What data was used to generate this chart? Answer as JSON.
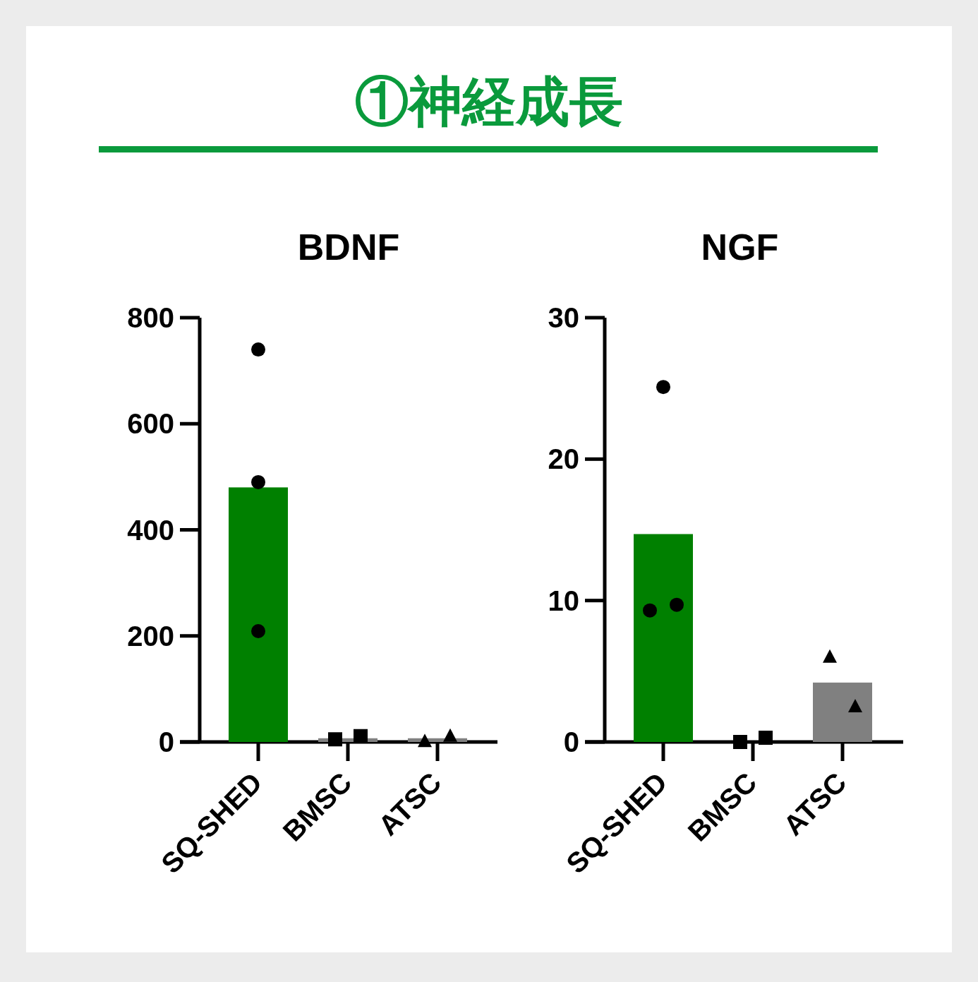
{
  "chart_data": [
    {
      "type": "bar",
      "title": "BDNF",
      "annotations": [
        "①神経成長"
      ],
      "categories": [
        "SQ-SHED",
        "BMSC",
        "ATSC"
      ],
      "ylim": [
        0,
        800
      ],
      "yticks": [
        0,
        200,
        400,
        600,
        800
      ],
      "grid": false,
      "series": [
        {
          "type": "bar",
          "values": [
            480,
            7,
            7
          ],
          "colors": [
            "#008000",
            "#808080",
            "#808080"
          ]
        },
        {
          "type": "scatter",
          "marker": "circle",
          "color": "#000000",
          "x": [
            "SQ-SHED",
            "SQ-SHED",
            "SQ-SHED"
          ],
          "values": [
            740,
            490,
            209
          ]
        },
        {
          "type": "scatter",
          "marker": "square",
          "color": "#000000",
          "x": [
            "BMSC",
            "BMSC"
          ],
          "values": [
            5,
            11
          ]
        },
        {
          "type": "scatter",
          "marker": "triangle",
          "color": "#000000",
          "x": [
            "ATSC",
            "ATSC"
          ],
          "values": [
            1,
            11
          ]
        }
      ]
    },
    {
      "type": "bar",
      "title": "NGF",
      "categories": [
        "SQ-SHED",
        "BMSC",
        "ATSC"
      ],
      "ylim": [
        0,
        30
      ],
      "yticks": [
        0,
        10,
        20,
        30
      ],
      "grid": false,
      "series": [
        {
          "type": "bar",
          "values": [
            14.7,
            null,
            4.2
          ],
          "colors": [
            "#008000",
            "#808080",
            "#808080"
          ]
        },
        {
          "type": "scatter",
          "marker": "circle",
          "color": "#000000",
          "x": [
            "SQ-SHED",
            "SQ-SHED",
            "SQ-SHED"
          ],
          "values": [
            9.3,
            25.1,
            9.7
          ]
        },
        {
          "type": "scatter",
          "marker": "square",
          "color": "#000000",
          "x": [
            "BMSC",
            "BMSC"
          ],
          "values": [
            0,
            0.3
          ]
        },
        {
          "type": "scatter",
          "marker": "triangle",
          "color": "#000000",
          "x": [
            "ATSC",
            "ATSC"
          ],
          "values": [
            6.0,
            2.5
          ]
        }
      ]
    }
  ]
}
